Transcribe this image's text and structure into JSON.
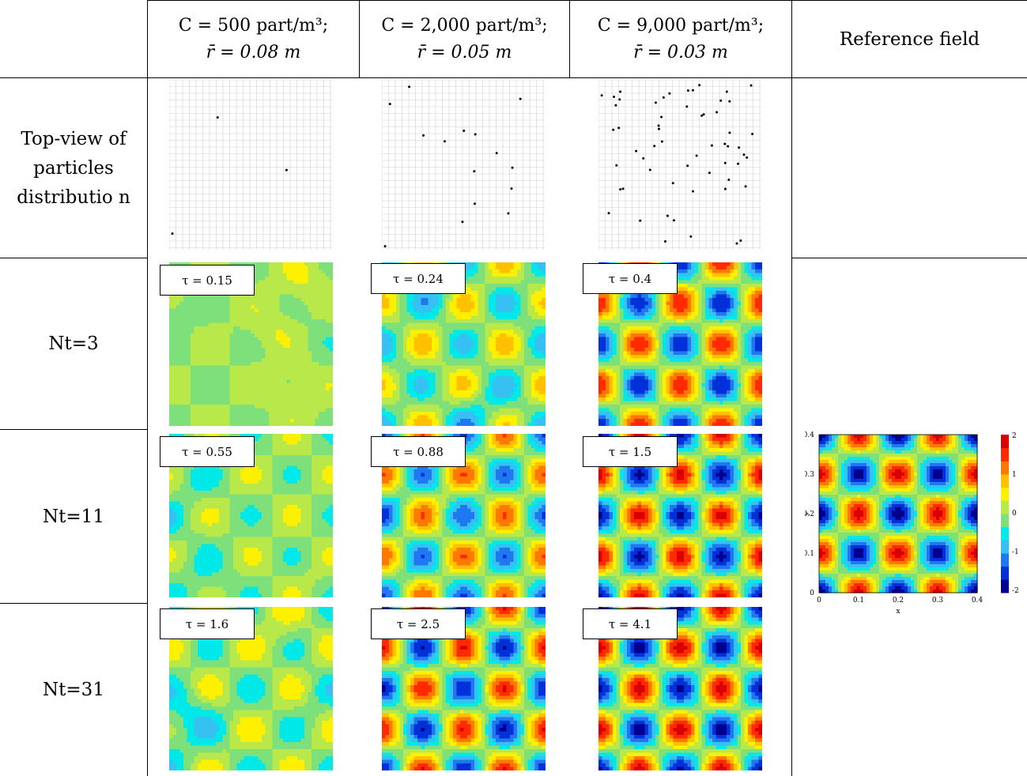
{
  "header": {
    "col1": {
      "line1": "C  =  500 part/m³;",
      "line2": "r̄ = 0.08 m"
    },
    "col2": {
      "line1": "C  =  2,000 part/m³;",
      "line2": "r̄ = 0.05 m"
    },
    "col3": {
      "line1": "C  = 9,000 part/m³;",
      "line2": "r̄ = 0.03 m"
    },
    "col4": "Reference field"
  },
  "rows": {
    "top_view": "Top-view of particles distributio n",
    "nt3": "Nt=3",
    "nt11": "Nt=11",
    "nt31": "Nt=31"
  },
  "tau": {
    "nt3": [
      "τ = 0.15",
      "τ = 0.24",
      "τ = 0.4"
    ],
    "nt11": [
      "τ = 0.55",
      "τ = 0.88",
      "τ = 1.5"
    ],
    "nt31": [
      "τ = 1.6",
      "τ = 2.5",
      "τ = 4.1"
    ]
  },
  "reference_plot": {
    "xlabel": "x",
    "ylabel": "y",
    "xticks": [
      "0",
      "0.1",
      "0.2",
      "0.3",
      "0.4"
    ],
    "yticks": [
      "0",
      "0.1",
      "0.2",
      "0.3",
      "0.4"
    ],
    "colorbar_ticks": [
      "2",
      "1",
      "0",
      "-1",
      "-2"
    ]
  },
  "colors": {
    "levels": [
      "#00008f",
      "#0030d8",
      "#1f78f0",
      "#37c0f2",
      "#00e8e8",
      "#7de07a",
      "#b8e84a",
      "#fff000",
      "#ffc000",
      "#ff7800",
      "#ff2a00",
      "#d80000"
    ]
  }
}
